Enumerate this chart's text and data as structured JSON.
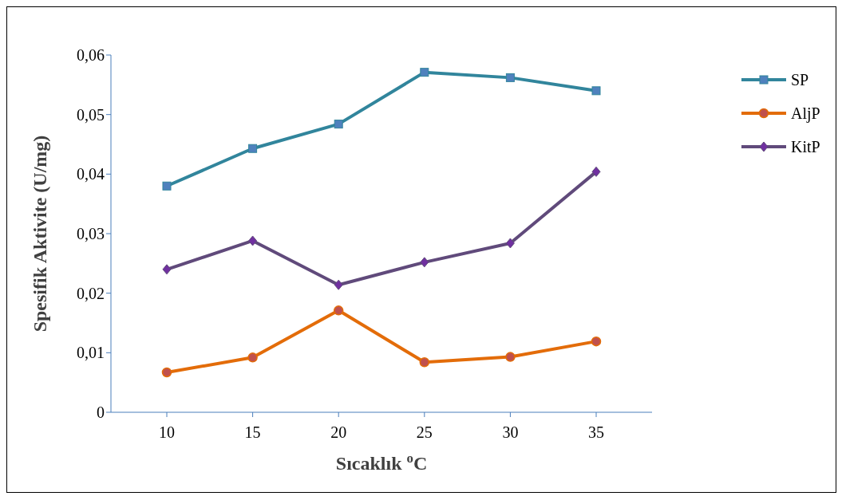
{
  "chart_data": {
    "type": "line",
    "xlabel": "Sıcaklık $^{o}$C",
    "ylabel": "Spesifik Aktivite (U/mg)",
    "categories": [
      "10",
      "15",
      "20",
      "25",
      "30",
      "35"
    ],
    "series": [
      {
        "name": "SP",
        "color": "#31859c",
        "marker": "square",
        "values": [
          0.038,
          0.0443,
          0.0484,
          0.0571,
          0.0562,
          0.054
        ]
      },
      {
        "name": "AljP",
        "color": "#e36c09",
        "marker": "circle",
        "values": [
          0.0067,
          0.0092,
          0.0171,
          0.0084,
          0.0093,
          0.0119
        ]
      },
      {
        "name": "KitP",
        "color": "#604a7b",
        "marker": "diamond",
        "values": [
          0.024,
          0.0288,
          0.0214,
          0.0252,
          0.0284,
          0.0404
        ]
      }
    ],
    "ylim": [
      0,
      0.06
    ],
    "yticks": [
      0,
      {
        "value": 0.01,
        "label": "0,01"
      },
      {
        "value": 0.02,
        "label": "0,02"
      },
      {
        "value": 0.03,
        "label": "0,03"
      },
      {
        "value": 0.04,
        "label": "0,04"
      },
      {
        "value": 0.05,
        "label": "0,05"
      },
      {
        "value": 0.06,
        "label": "0,06"
      }
    ],
    "grid": false,
    "legend": "right",
    "line_style": "solid"
  }
}
